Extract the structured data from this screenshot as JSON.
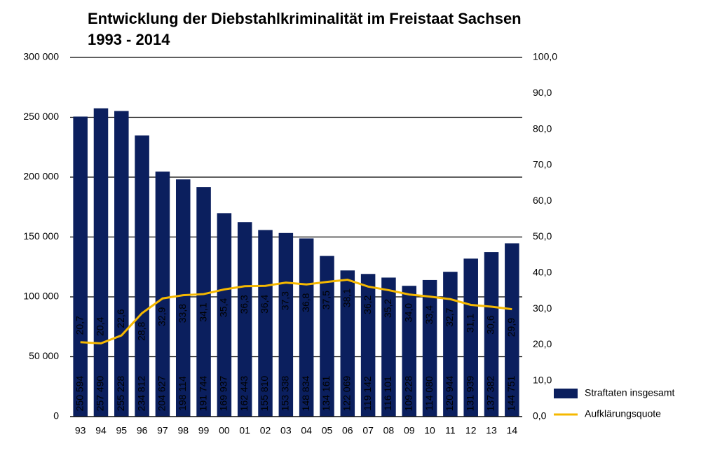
{
  "chart_data": {
    "type": "bar",
    "title": "Entwicklung der Diebstahlkriminalität im Freistaat Sachsen",
    "subtitle": "1993 - 2014",
    "categories": [
      "93",
      "94",
      "95",
      "96",
      "97",
      "98",
      "99",
      "00",
      "01",
      "02",
      "03",
      "04",
      "05",
      "06",
      "07",
      "08",
      "09",
      "10",
      "11",
      "12",
      "13",
      "14"
    ],
    "series": [
      {
        "name": "Straftaten insgesamt",
        "type": "bar",
        "color": "#0b1f5e",
        "values": [
          250594,
          257490,
          255228,
          234812,
          204627,
          198114,
          191744,
          169937,
          162443,
          155810,
          153338,
          148834,
          134161,
          122069,
          119142,
          116101,
          109228,
          114080,
          120944,
          131939,
          137382,
          144751
        ],
        "value_labels": [
          "250 594",
          "257 490",
          "255 228",
          "234 812",
          "204 627",
          "198 114",
          "191 744",
          "169 937",
          "162 443",
          "155 810",
          "153 338",
          "148 834",
          "134 161",
          "122 069",
          "119 142",
          "116 101",
          "109 228",
          "114 080",
          "120 944",
          "131 939",
          "137 382",
          "144 751"
        ]
      },
      {
        "name": "Aufklärungsquote",
        "type": "line",
        "axis": "y2",
        "color": "#f5b800",
        "values": [
          20.7,
          20.4,
          22.6,
          28.8,
          32.9,
          33.8,
          34.1,
          35.4,
          36.3,
          36.4,
          37.3,
          36.8,
          37.5,
          38.1,
          36.2,
          35.2,
          34.0,
          33.4,
          32.7,
          31.1,
          30.6,
          29.9
        ],
        "value_labels": [
          "20,7",
          "20,4",
          "22,6",
          "28,8",
          "32,9",
          "33,8",
          "34,1",
          "35,4",
          "36,3",
          "36,4",
          "37,3",
          "36,8",
          "37,5",
          "38,1",
          "36,2",
          "35,2",
          "34,0",
          "33,4",
          "32,7",
          "31,1",
          "30,6",
          "29,9"
        ]
      }
    ],
    "ylim": [
      0,
      300000
    ],
    "yticks": [
      0,
      {
        "value": 50000,
        "label": "50 000"
      },
      {
        "value": 100000,
        "label": "100 000"
      },
      {
        "value": 150000,
        "label": "150 000"
      },
      {
        "value": 200000,
        "label": "200 000"
      },
      {
        "value": 250000,
        "label": "250 000"
      },
      {
        "value": 300000,
        "label": "300 000"
      }
    ],
    "y2lim": [
      0,
      100
    ],
    "y2ticks": [
      {
        "value": 0,
        "label": "0,0"
      },
      {
        "value": 10,
        "label": "10,0"
      },
      {
        "value": 20,
        "label": "20,0"
      },
      {
        "value": 30,
        "label": "30,0"
      },
      {
        "value": 40,
        "label": "40,0"
      },
      {
        "value": 50,
        "label": "50,0"
      },
      {
        "value": 60,
        "label": "60,0"
      },
      {
        "value": 70,
        "label": "70,0"
      },
      {
        "value": 80,
        "label": "80,0"
      },
      {
        "value": 90,
        "label": "90,0"
      },
      {
        "value": 100,
        "label": "100,0"
      }
    ],
    "grid": true,
    "legend": "lower right"
  }
}
